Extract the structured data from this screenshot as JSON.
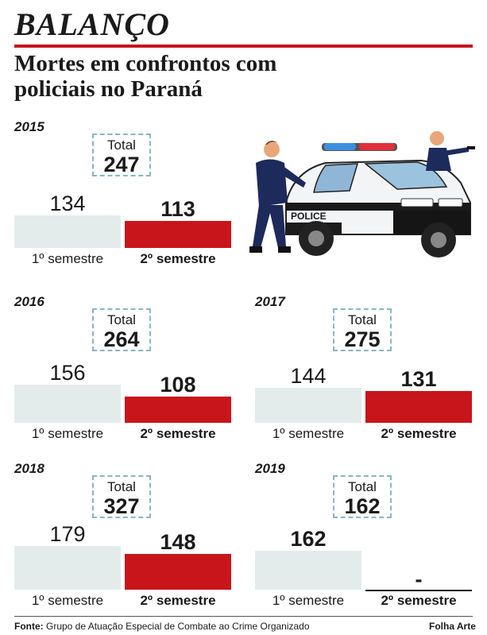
{
  "header": {
    "kicker": "BALANÇO",
    "title": "Mortes em confrontos com policiais no Paraná"
  },
  "labels": {
    "total": "Total",
    "s1": "1º semestre",
    "s2": "2º semestre",
    "missing": "-"
  },
  "chart_data": [
    {
      "type": "bar",
      "title": "2015",
      "categories": [
        "1º semestre",
        "2º semestre"
      ],
      "values": [
        134,
        113
      ],
      "total": 247
    },
    {
      "type": "bar",
      "title": "2016",
      "categories": [
        "1º semestre",
        "2º semestre"
      ],
      "values": [
        156,
        108
      ],
      "total": 264
    },
    {
      "type": "bar",
      "title": "2017",
      "categories": [
        "1º semestre",
        "2º semestre"
      ],
      "values": [
        144,
        131
      ],
      "total": 275
    },
    {
      "type": "bar",
      "title": "2018",
      "categories": [
        "1º semestre",
        "2º semestre"
      ],
      "values": [
        179,
        148
      ],
      "total": 327
    },
    {
      "type": "bar",
      "title": "2019",
      "categories": [
        "1º semestre",
        "2º semestre"
      ],
      "values": [
        162,
        null
      ],
      "total": 162
    }
  ],
  "colors": {
    "accent": "#c8151b",
    "first_half": "#e3eceb",
    "box_border": "#8ab4c6"
  },
  "illustration": {
    "car_text": "POLICE"
  },
  "footer": {
    "source_label": "Fonte:",
    "source_text": "Grupo de Atuação Especial de Combate ao Crime Organizado",
    "credit": "Folha Arte"
  }
}
